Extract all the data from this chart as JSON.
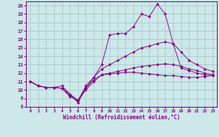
{
  "xlabel": "Windchill (Refroidissement éolien,°C)",
  "background_color": "#cce8e8",
  "grid_color": "#aacccc",
  "line_color": "#880088",
  "xlim": [
    -0.5,
    23.5
  ],
  "ylim": [
    8,
    20.5
  ],
  "xticks": [
    0,
    1,
    2,
    3,
    4,
    5,
    6,
    7,
    8,
    9,
    10,
    11,
    12,
    13,
    14,
    15,
    16,
    17,
    18,
    19,
    20,
    21,
    22,
    23
  ],
  "yticks": [
    8,
    9,
    10,
    11,
    12,
    13,
    14,
    15,
    16,
    17,
    18,
    19,
    20
  ],
  "lines": [
    {
      "x": [
        0,
        1,
        2,
        3,
        4,
        5,
        6,
        7,
        8,
        9,
        10,
        11,
        12,
        13,
        14,
        15,
        16,
        17,
        18,
        19,
        20,
        21,
        22,
        23
      ],
      "y": [
        11,
        10.5,
        10.3,
        10.3,
        10.5,
        9.5,
        8.5,
        10.2,
        11.5,
        13.0,
        16.5,
        16.7,
        16.7,
        17.5,
        19.0,
        18.7,
        20.2,
        19.0,
        15.5,
        12.6,
        12.3,
        12.0,
        11.8,
        11.7
      ]
    },
    {
      "x": [
        0,
        1,
        2,
        3,
        4,
        5,
        6,
        7,
        8,
        9,
        10,
        11,
        12,
        13,
        14,
        15,
        16,
        17,
        18,
        19,
        20,
        21,
        22,
        23
      ],
      "y": [
        11,
        10.5,
        10.3,
        10.3,
        10.2,
        9.3,
        8.7,
        10.5,
        11.5,
        12.5,
        13.0,
        13.5,
        14.0,
        14.5,
        15.0,
        15.2,
        15.5,
        15.7,
        15.5,
        14.5,
        13.5,
        13.0,
        12.5,
        12.2
      ]
    },
    {
      "x": [
        0,
        1,
        2,
        3,
        4,
        5,
        6,
        7,
        8,
        9,
        10,
        11,
        12,
        13,
        14,
        15,
        16,
        17,
        18,
        19,
        20,
        21,
        22,
        23
      ],
      "y": [
        11,
        10.5,
        10.3,
        10.3,
        10.2,
        9.2,
        8.8,
        10.0,
        11.0,
        11.8,
        12.0,
        12.2,
        12.4,
        12.6,
        12.8,
        12.9,
        13.0,
        13.1,
        13.0,
        12.8,
        12.5,
        12.3,
        12.0,
        11.8
      ]
    },
    {
      "x": [
        0,
        1,
        2,
        3,
        4,
        5,
        6,
        7,
        8,
        9,
        10,
        11,
        12,
        13,
        14,
        15,
        16,
        17,
        18,
        19,
        20,
        21,
        22,
        23
      ],
      "y": [
        11,
        10.5,
        10.3,
        10.3,
        10.2,
        9.5,
        8.8,
        10.2,
        11.2,
        11.8,
        11.9,
        12.0,
        12.1,
        12.1,
        12.0,
        11.9,
        11.8,
        11.7,
        11.7,
        11.6,
        11.5,
        11.5,
        11.6,
        11.7
      ]
    }
  ]
}
